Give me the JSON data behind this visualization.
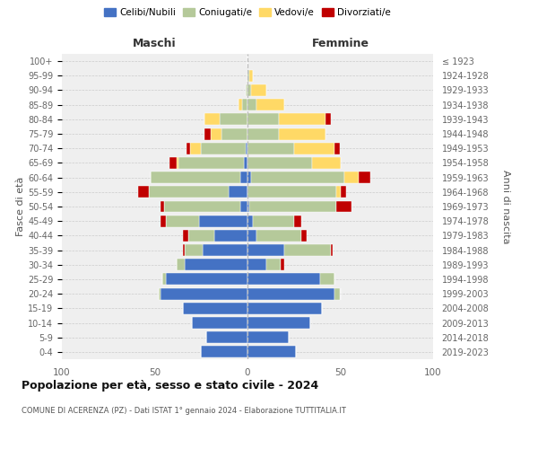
{
  "age_groups": [
    "0-4",
    "5-9",
    "10-14",
    "15-19",
    "20-24",
    "25-29",
    "30-34",
    "35-39",
    "40-44",
    "45-49",
    "50-54",
    "55-59",
    "60-64",
    "65-69",
    "70-74",
    "75-79",
    "80-84",
    "85-89",
    "90-94",
    "95-99",
    "100+"
  ],
  "birth_years": [
    "2019-2023",
    "2014-2018",
    "2009-2013",
    "2004-2008",
    "1999-2003",
    "1994-1998",
    "1989-1993",
    "1984-1988",
    "1979-1983",
    "1974-1978",
    "1969-1973",
    "1964-1968",
    "1959-1963",
    "1954-1958",
    "1949-1953",
    "1944-1948",
    "1939-1943",
    "1934-1938",
    "1929-1933",
    "1924-1928",
    "≤ 1923"
  ],
  "maschi": {
    "celibi": [
      25,
      22,
      30,
      35,
      47,
      44,
      34,
      24,
      18,
      26,
      4,
      10,
      4,
      2,
      1,
      0,
      0,
      0,
      0,
      0,
      0
    ],
    "coniugati": [
      0,
      0,
      0,
      0,
      1,
      2,
      4,
      10,
      14,
      18,
      41,
      43,
      48,
      35,
      24,
      14,
      15,
      3,
      1,
      0,
      0
    ],
    "vedovi": [
      0,
      0,
      0,
      0,
      0,
      0,
      0,
      0,
      0,
      0,
      0,
      0,
      0,
      1,
      6,
      6,
      8,
      2,
      0,
      0,
      0
    ],
    "divorziati": [
      0,
      0,
      0,
      0,
      0,
      0,
      0,
      1,
      3,
      3,
      2,
      6,
      0,
      4,
      2,
      3,
      0,
      0,
      0,
      0,
      0
    ]
  },
  "femmine": {
    "nubili": [
      26,
      22,
      34,
      40,
      47,
      39,
      10,
      20,
      5,
      3,
      1,
      0,
      2,
      0,
      0,
      0,
      0,
      0,
      0,
      0,
      0
    ],
    "coniugate": [
      0,
      0,
      0,
      0,
      3,
      8,
      8,
      25,
      24,
      22,
      47,
      48,
      50,
      35,
      25,
      17,
      17,
      5,
      2,
      1,
      0
    ],
    "vedove": [
      0,
      0,
      0,
      0,
      0,
      0,
      0,
      0,
      0,
      0,
      0,
      2,
      8,
      15,
      22,
      25,
      25,
      15,
      8,
      2,
      0
    ],
    "divorziate": [
      0,
      0,
      0,
      0,
      0,
      0,
      2,
      1,
      3,
      4,
      8,
      3,
      6,
      0,
      3,
      0,
      3,
      0,
      0,
      0,
      0
    ]
  },
  "colors": {
    "celibi": "#4472c4",
    "coniugati": "#b5c99a",
    "vedovi": "#ffd966",
    "divorziati": "#c00000"
  },
  "xlim": 100,
  "title": "Popolazione per età, sesso e stato civile - 2024",
  "subtitle": "COMUNE DI ACERENZA (PZ) - Dati ISTAT 1° gennaio 2024 - Elaborazione TUTTITALIA.IT",
  "ylabel_left": "Fasce di età",
  "ylabel_right": "Anni di nascita",
  "xlabel_maschi": "Maschi",
  "xlabel_femmine": "Femmine",
  "legend_labels": [
    "Celibi/Nubili",
    "Coniugati/e",
    "Vedovi/e",
    "Divorziati/e"
  ],
  "bg_color": "#efefef"
}
